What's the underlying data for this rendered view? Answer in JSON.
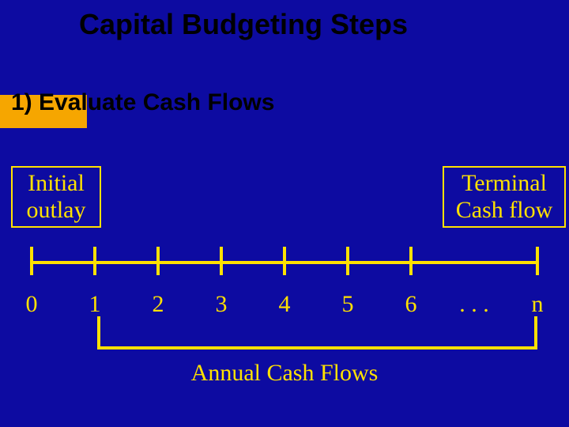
{
  "colors": {
    "background": "#0d0ba1",
    "text_heading": "#000000",
    "text_body": "#ffe100",
    "accent_block": "#f6a600",
    "annotation": "#ffe100",
    "timeline_line": "#ffe100",
    "box_border": "#ffe100"
  },
  "title": "Capital Budgeting Steps",
  "subtitle": "1)  Evaluate Cash Flows",
  "boxes": {
    "initial": "Initial outlay",
    "terminal": "Terminal Cash flow"
  },
  "timeline": {
    "ticks": [
      "0",
      "1",
      "2",
      "3",
      "4",
      "5",
      "6",
      ". . .",
      "n"
    ],
    "line_width": 4,
    "tick_height": 36
  },
  "bracket_label": "Annual Cash Flows",
  "box_border_width": 2,
  "title_fontsize": 36,
  "subtitle_fontsize": 30,
  "label_fontsize": 30
}
